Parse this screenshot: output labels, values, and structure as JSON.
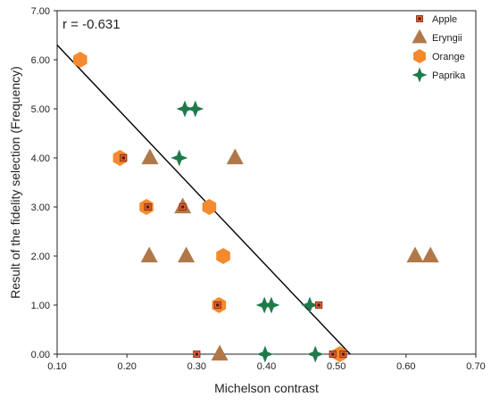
{
  "chart_data": {
    "type": "scatter",
    "title": "",
    "annotation": "r = -0.631",
    "xlabel": "Michelson contrast",
    "ylabel": "Result of the fidelity selection (Frequency)",
    "xlim": [
      0.1,
      0.7
    ],
    "ylim": [
      0.0,
      7.0
    ],
    "x_ticks": [
      "0.10",
      "0.20",
      "0.30",
      "0.40",
      "0.50",
      "0.60",
      "0.70"
    ],
    "y_ticks": [
      "0.00",
      "1.00",
      "2.00",
      "3.00",
      "4.00",
      "5.00",
      "6.00",
      "7.00"
    ],
    "grid": false,
    "legend_position": "top-right",
    "trendline": {
      "x": [
        0.1,
        0.52
      ],
      "y": [
        6.3,
        0.0
      ]
    },
    "series": [
      {
        "name": "Apple",
        "marker": "square",
        "color": "#d9542a",
        "points": [
          [
            0.195,
            4.0
          ],
          [
            0.23,
            3.0
          ],
          [
            0.28,
            3.0
          ],
          [
            0.33,
            1.0
          ],
          [
            0.475,
            1.0
          ],
          [
            0.3,
            0.0
          ],
          [
            0.495,
            0.0
          ],
          [
            0.51,
            0.0
          ]
        ]
      },
      {
        "name": "Eryngii",
        "marker": "triangle",
        "color": "#b07848",
        "points": [
          [
            0.233,
            4.0
          ],
          [
            0.355,
            4.0
          ],
          [
            0.28,
            3.0
          ],
          [
            0.232,
            2.0
          ],
          [
            0.285,
            2.0
          ],
          [
            0.613,
            2.0
          ],
          [
            0.635,
            2.0
          ],
          [
            0.333,
            0.0
          ]
        ]
      },
      {
        "name": "Orange",
        "marker": "hexagon",
        "color": "#f5892d",
        "points": [
          [
            0.133,
            6.0
          ],
          [
            0.19,
            4.0
          ],
          [
            0.228,
            3.0
          ],
          [
            0.318,
            3.0
          ],
          [
            0.338,
            2.0
          ],
          [
            0.332,
            1.0
          ],
          [
            0.505,
            0.0
          ]
        ]
      },
      {
        "name": "Paprika",
        "marker": "star4",
        "color": "#1f7a4a",
        "points": [
          [
            0.283,
            5.0
          ],
          [
            0.298,
            5.0
          ],
          [
            0.275,
            4.0
          ],
          [
            0.397,
            1.0
          ],
          [
            0.407,
            1.0
          ],
          [
            0.462,
            1.0
          ],
          [
            0.398,
            0.0
          ],
          [
            0.47,
            0.0
          ]
        ]
      }
    ]
  }
}
